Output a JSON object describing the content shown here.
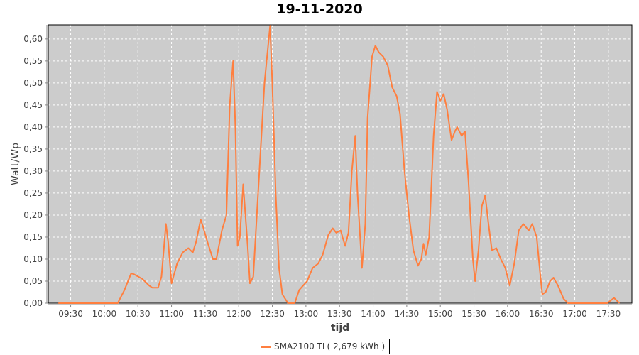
{
  "chart_data": {
    "type": "line",
    "title": "19-11-2020",
    "xlabel": "tijd",
    "ylabel": "Watt/Wp",
    "xlim": [
      "09:10",
      "17:51"
    ],
    "ylim": [
      0,
      0.632
    ],
    "xticks": [
      "09:30",
      "10:00",
      "10:30",
      "11:00",
      "11:30",
      "12:00",
      "12:30",
      "13:00",
      "13:30",
      "14:00",
      "14:30",
      "15:00",
      "15:30",
      "16:00",
      "16:30",
      "17:00",
      "17:30"
    ],
    "yticks": [
      "0,00",
      "0,05",
      "0,10",
      "0,15",
      "0,20",
      "0,25",
      "0,30",
      "0,35",
      "0,40",
      "0,45",
      "0,50",
      "0,55",
      "0,60"
    ],
    "grid": true,
    "background": "#cccccc",
    "legend_placement": "bottom",
    "series": [
      {
        "name": "SMA2100 TL( 2,679 kWh )",
        "color": "#ff7f3f",
        "x": [
          "09:19",
          "10:12",
          "10:18",
          "10:24",
          "10:27",
          "10:34",
          "10:40",
          "10:43",
          "10:48",
          "10:51",
          "10:55",
          "10:57",
          "11:00",
          "11:05",
          "11:10",
          "11:15",
          "11:19",
          "11:22",
          "11:26",
          "11:28",
          "11:32",
          "11:37",
          "11:40",
          "11:45",
          "11:49",
          "11:52",
          "11:55",
          "11:57",
          "11:59",
          "12:01",
          "12:04",
          "12:08",
          "12:10",
          "12:13",
          "12:18",
          "12:23",
          "12:28",
          "12:30",
          "12:33",
          "12:36",
          "12:39",
          "12:44",
          "12:50",
          "12:54",
          "13:01",
          "13:06",
          "13:11",
          "13:15",
          "13:20",
          "13:24",
          "13:27",
          "13:31",
          "13:35",
          "13:38",
          "13:41",
          "13:44",
          "13:46",
          "13:50",
          "13:53",
          "13:55",
          "13:59",
          "14:02",
          "14:05",
          "14:09",
          "14:13",
          "14:17",
          "14:21",
          "14:24",
          "14:28",
          "14:32",
          "14:36",
          "14:40",
          "14:43",
          "14:45",
          "14:47",
          "14:50",
          "14:54",
          "14:57",
          "15:00",
          "15:03",
          "15:06",
          "15:10",
          "15:13",
          "15:15",
          "15:19",
          "15:22",
          "15:25",
          "15:29",
          "15:31",
          "15:34",
          "15:37",
          "15:40",
          "15:43",
          "15:46",
          "15:50",
          "15:54",
          "15:58",
          "16:02",
          "16:06",
          "16:10",
          "16:14",
          "16:19",
          "16:22",
          "16:26",
          "16:29",
          "16:31",
          "16:34",
          "16:38",
          "16:41",
          "16:45",
          "16:50",
          "16:54",
          "17:29",
          "17:35",
          "17:40"
        ],
        "y": [
          0,
          0,
          0.03,
          0.068,
          0.065,
          0.055,
          0.04,
          0.035,
          0.035,
          0.06,
          0.18,
          0.14,
          0.045,
          0.09,
          0.115,
          0.125,
          0.115,
          0.14,
          0.19,
          0.175,
          0.14,
          0.1,
          0.1,
          0.165,
          0.2,
          0.45,
          0.55,
          0.4,
          0.13,
          0.15,
          0.27,
          0.13,
          0.045,
          0.06,
          0.28,
          0.5,
          0.63,
          0.5,
          0.25,
          0.08,
          0.02,
          0,
          0,
          0.03,
          0.05,
          0.08,
          0.09,
          0.11,
          0.155,
          0.17,
          0.16,
          0.165,
          0.13,
          0.16,
          0.3,
          0.38,
          0.25,
          0.08,
          0.18,
          0.42,
          0.56,
          0.585,
          0.57,
          0.56,
          0.54,
          0.49,
          0.47,
          0.43,
          0.3,
          0.2,
          0.12,
          0.085,
          0.1,
          0.135,
          0.11,
          0.15,
          0.38,
          0.48,
          0.46,
          0.475,
          0.44,
          0.37,
          0.39,
          0.4,
          0.38,
          0.39,
          0.28,
          0.1,
          0.05,
          0.12,
          0.22,
          0.245,
          0.18,
          0.12,
          0.125,
          0.1,
          0.08,
          0.04,
          0.09,
          0.165,
          0.18,
          0.165,
          0.18,
          0.15,
          0.07,
          0.02,
          0.025,
          0.05,
          0.058,
          0.04,
          0.01,
          0,
          0,
          0.012,
          0
        ]
      }
    ]
  }
}
